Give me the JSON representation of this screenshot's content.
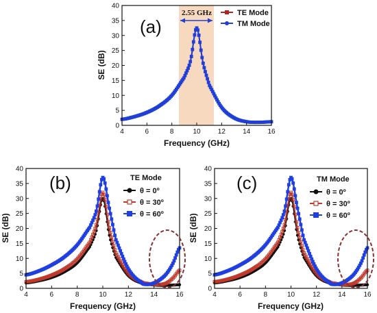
{
  "colors": {
    "te": "#b22222",
    "tm": "#1f3fd6",
    "angle0": "#111111",
    "angle30": "#c0392b",
    "angle60": "#1f3fe0",
    "band": "#f6d9bf",
    "ellipse": "#8b2e2e"
  },
  "chart_data": [
    {
      "type": "line",
      "panel_label": "(a)",
      "xlabel": "Frequency (GHz)",
      "ylabel": "SE (dB)",
      "xlim": [
        4,
        16
      ],
      "ylim": [
        0,
        40
      ],
      "xticks": [
        "4",
        "6",
        "8",
        "10",
        "12",
        "14",
        "16"
      ],
      "yticks": [
        "0",
        "5",
        "10",
        "15",
        "20",
        "25",
        "30",
        "35",
        "40"
      ],
      "legend_title": "",
      "legend_position": "top-right",
      "annotation": {
        "text": "2.55 GHz",
        "band_x": [
          8.7,
          11.3
        ]
      },
      "x": [
        4,
        5,
        6,
        7,
        8,
        9,
        9.5,
        10,
        10.5,
        11,
        12,
        13,
        14,
        15,
        16
      ],
      "series": [
        {
          "name": "TE Mode",
          "values": [
            2.0,
            2.9,
            4.3,
            6.5,
            10.0,
            16.0,
            21.5,
            32.5,
            21.0,
            13.5,
            6.0,
            2.5,
            1.2,
            1.0,
            1.2
          ]
        },
        {
          "name": "TM Mode",
          "values": [
            2.0,
            2.9,
            4.3,
            6.5,
            10.0,
            16.0,
            21.5,
            32.5,
            21.0,
            13.5,
            6.0,
            2.5,
            1.2,
            1.0,
            1.2
          ]
        }
      ]
    },
    {
      "type": "line",
      "panel_label": "(b)",
      "xlabel": "Frequency (GHz)",
      "ylabel": "SE (dB)",
      "xlim": [
        4,
        16
      ],
      "ylim": [
        0,
        40
      ],
      "xticks": [
        "4",
        "6",
        "8",
        "10",
        "12",
        "14",
        "16"
      ],
      "yticks": [
        "0",
        "5",
        "10",
        "15",
        "20",
        "25",
        "30",
        "35",
        "40"
      ],
      "legend_title": "TE Mode",
      "legend_position": "top-right",
      "x": [
        4,
        5,
        6,
        7,
        8,
        9,
        9.5,
        10,
        10.5,
        11,
        12,
        13,
        13.5,
        14,
        14.5,
        15,
        15.5,
        16
      ],
      "series": [
        {
          "name": "θ = 0º",
          "values": [
            1.8,
            2.5,
            3.6,
            5.5,
            8.5,
            14.0,
            19.5,
            30.0,
            18.0,
            10.5,
            4.2,
            1.8,
            1.4,
            1.1,
            1.0,
            1.0,
            1.1,
            1.2
          ]
        },
        {
          "name": "θ = 30º",
          "values": [
            2.2,
            3.0,
            4.4,
            6.5,
            9.8,
            15.5,
            21.5,
            32.0,
            20.5,
            12.0,
            5.0,
            2.2,
            1.6,
            1.3,
            1.3,
            1.8,
            3.5,
            6.0
          ]
        },
        {
          "name": "θ = 60º",
          "values": [
            4.5,
            5.8,
            7.8,
            10.5,
            14.5,
            20.5,
            26.0,
            37.0,
            27.0,
            16.5,
            6.5,
            2.0,
            1.3,
            1.8,
            3.0,
            5.0,
            8.5,
            13.5
          ]
        }
      ]
    },
    {
      "type": "line",
      "panel_label": "(c)",
      "xlabel": "Frequency (GHz)",
      "ylabel": "SE (dB)",
      "xlim": [
        4,
        16
      ],
      "ylim": [
        0,
        40
      ],
      "xticks": [
        "4",
        "6",
        "8",
        "10",
        "12",
        "14",
        "16"
      ],
      "yticks": [
        "0",
        "5",
        "10",
        "15",
        "20",
        "25",
        "30",
        "35",
        "40"
      ],
      "legend_title": "TM Mode",
      "legend_position": "top-right",
      "x": [
        4,
        5,
        6,
        7,
        8,
        9,
        9.5,
        10,
        10.5,
        11,
        12,
        13,
        13.5,
        14,
        14.5,
        15,
        15.5,
        16
      ],
      "series": [
        {
          "name": "θ = 0º",
          "values": [
            1.8,
            2.5,
            3.6,
            5.5,
            8.5,
            14.0,
            19.5,
            30.0,
            18.0,
            10.5,
            4.2,
            1.8,
            1.4,
            1.1,
            1.0,
            1.0,
            1.1,
            1.2
          ]
        },
        {
          "name": "θ = 30º",
          "values": [
            2.2,
            3.0,
            4.4,
            6.5,
            9.8,
            15.5,
            21.5,
            32.0,
            20.5,
            12.0,
            5.0,
            2.2,
            1.6,
            1.3,
            1.3,
            1.8,
            3.5,
            6.0
          ]
        },
        {
          "name": "θ = 60º",
          "values": [
            4.5,
            5.8,
            7.8,
            10.5,
            14.5,
            20.5,
            26.0,
            37.0,
            27.0,
            16.5,
            6.5,
            2.0,
            1.3,
            1.8,
            3.0,
            5.0,
            8.5,
            13.5
          ]
        }
      ]
    }
  ]
}
